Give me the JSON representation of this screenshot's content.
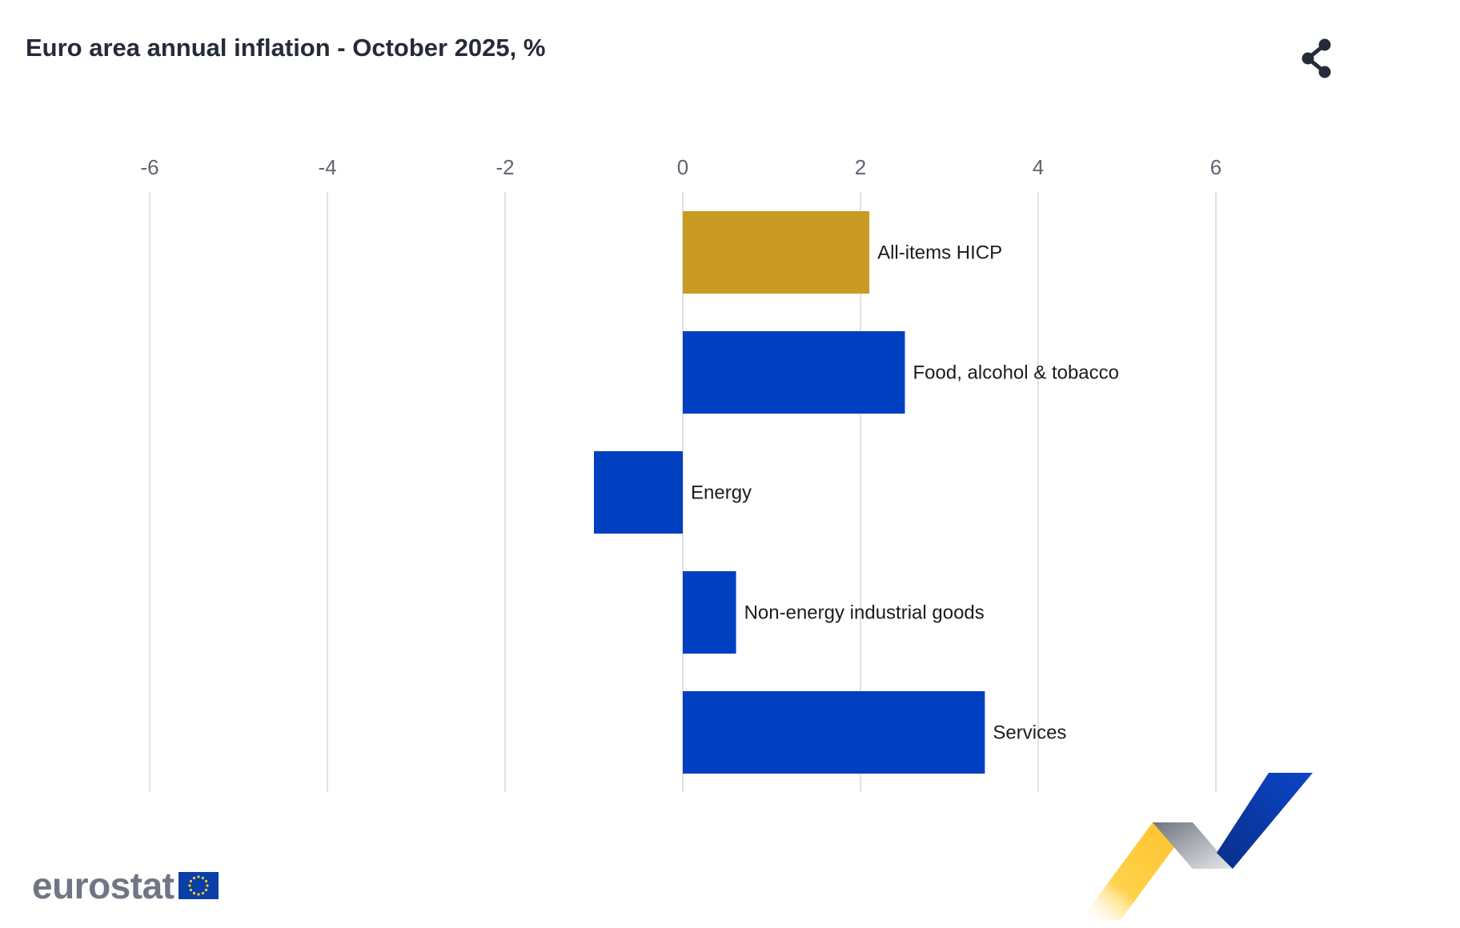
{
  "header": {
    "title": "Euro area annual inflation - October 2025, %",
    "share_icon": "share-icon"
  },
  "chart_data": {
    "type": "bar",
    "orientation": "horizontal",
    "title": "Euro area annual inflation - October 2025, %",
    "xlim": [
      -6,
      7.2
    ],
    "x_ticks": [
      -6,
      -4,
      -2,
      0,
      2,
      4,
      6
    ],
    "grid": true,
    "categories": [
      "All-items HICP",
      "Food, alcohol & tobacco",
      "Energy",
      "Non-energy industrial goods",
      "Services"
    ],
    "values": [
      2.1,
      2.5,
      -1.0,
      0.6,
      3.4
    ],
    "colors": [
      "#c99a24",
      "#0040c0",
      "#0040c0",
      "#0040c0",
      "#0040c0"
    ]
  },
  "footer": {
    "logo_text": "eurostat",
    "flag_icon": "eu-flag-icon",
    "ribbon_icon": "decorative-ribbon-icon"
  }
}
